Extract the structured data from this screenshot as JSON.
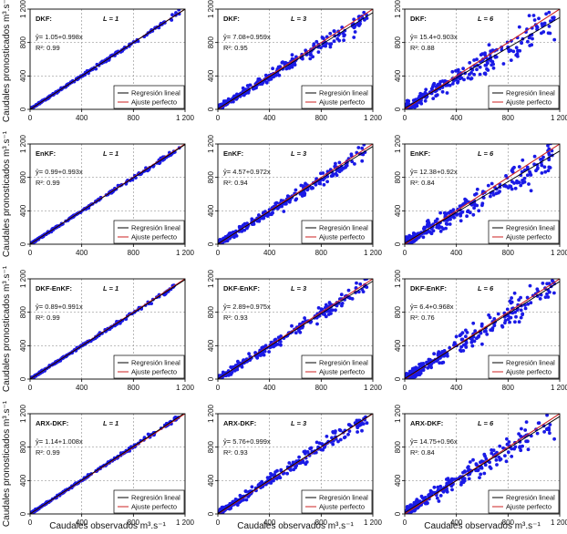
{
  "figure": {
    "x_label": "Caudales observados m³.s⁻¹",
    "y_label": "Caudales pronosticados m³.s⁻¹",
    "legend": {
      "regression": "Regresión lineal",
      "perfect": "Ajuste perfecto"
    },
    "axis_ticks": [
      "0",
      "400",
      "800",
      "1 200"
    ]
  },
  "colors": {
    "points": "#1a1ae6",
    "regression": "#000000",
    "perfect": "#cc2222",
    "grid": "#999999",
    "axis": "#000000"
  },
  "chart_data": [
    {
      "type": "scatter",
      "method": "DKF:",
      "lead": "L = 1",
      "equation": "ŷ= 1.05+0.998x",
      "r2": "R²: 0.99",
      "intercept": 1.05,
      "slope": 0.998,
      "r2_value": 0.99,
      "xlim": [
        0,
        1200
      ],
      "ylim": [
        0,
        1200
      ]
    },
    {
      "type": "scatter",
      "method": "DKF:",
      "lead": "L = 3",
      "equation": "ŷ= 7.08+0.959x",
      "r2": "R²: 0.95",
      "intercept": 7.08,
      "slope": 0.959,
      "r2_value": 0.95,
      "xlim": [
        0,
        1200
      ],
      "ylim": [
        0,
        1200
      ]
    },
    {
      "type": "scatter",
      "method": "DKF:",
      "lead": "L = 6",
      "equation": "ŷ= 15.4+0.903x",
      "r2": "R²: 0.88",
      "intercept": 15.4,
      "slope": 0.903,
      "r2_value": 0.88,
      "xlim": [
        0,
        1200
      ],
      "ylim": [
        0,
        1200
      ]
    },
    {
      "type": "scatter",
      "method": "EnKF:",
      "lead": "L = 1",
      "equation": "ŷ= 0.99+0.993x",
      "r2": "R²: 0.99",
      "intercept": 0.99,
      "slope": 0.993,
      "r2_value": 0.99,
      "xlim": [
        0,
        1200
      ],
      "ylim": [
        0,
        1200
      ]
    },
    {
      "type": "scatter",
      "method": "EnKF:",
      "lead": "L = 3",
      "equation": "ŷ= 4.57+0.972x",
      "r2": "R²: 0.94",
      "intercept": 4.57,
      "slope": 0.972,
      "r2_value": 0.94,
      "xlim": [
        0,
        1200
      ],
      "ylim": [
        0,
        1200
      ]
    },
    {
      "type": "scatter",
      "method": "EnKF:",
      "lead": "L = 6",
      "equation": "ŷ= 12.38+0.92x",
      "r2": "R²: 0.84",
      "intercept": 12.38,
      "slope": 0.92,
      "r2_value": 0.84,
      "xlim": [
        0,
        1200
      ],
      "ylim": [
        0,
        1200
      ]
    },
    {
      "type": "scatter",
      "method": "DKF-EnKF:",
      "lead": "L = 1",
      "equation": "ŷ= 0.89+0.991x",
      "r2": "R²: 0.99",
      "intercept": 0.89,
      "slope": 0.991,
      "r2_value": 0.99,
      "xlim": [
        0,
        1200
      ],
      "ylim": [
        0,
        1200
      ]
    },
    {
      "type": "scatter",
      "method": "DKF-EnKF:",
      "lead": "L = 3",
      "equation": "ŷ= 2.89+0.975x",
      "r2": "R²: 0.93",
      "intercept": 2.89,
      "slope": 0.975,
      "r2_value": 0.93,
      "xlim": [
        0,
        1200
      ],
      "ylim": [
        0,
        1200
      ]
    },
    {
      "type": "scatter",
      "method": "DKF-EnKF:",
      "lead": "L = 6",
      "equation": "ŷ= 6.4+0.968x",
      "r2": "R²: 0.76",
      "intercept": 6.4,
      "slope": 0.968,
      "r2_value": 0.76,
      "xlim": [
        0,
        1200
      ],
      "ylim": [
        0,
        1200
      ]
    },
    {
      "type": "scatter",
      "method": "ARX-DKF:",
      "lead": "L = 1",
      "equation": "ŷ= 1.14+1.008x",
      "r2": "R²: 0.99",
      "intercept": 1.14,
      "slope": 1.008,
      "r2_value": 0.99,
      "xlim": [
        0,
        1200
      ],
      "ylim": [
        0,
        1200
      ]
    },
    {
      "type": "scatter",
      "method": "ARX-DKF:",
      "lead": "L = 3",
      "equation": "ŷ= 5.76+0.999x",
      "r2": "R²: 0.93",
      "intercept": 5.76,
      "slope": 0.999,
      "r2_value": 0.93,
      "xlim": [
        0,
        1200
      ],
      "ylim": [
        0,
        1200
      ]
    },
    {
      "type": "scatter",
      "method": "ARX-DKF:",
      "lead": "L = 6",
      "equation": "ŷ= 14.75+0.96x",
      "r2": "R²: 0.84",
      "intercept": 14.75,
      "slope": 0.96,
      "r2_value": 0.84,
      "xlim": [
        0,
        1200
      ],
      "ylim": [
        0,
        1200
      ]
    }
  ]
}
